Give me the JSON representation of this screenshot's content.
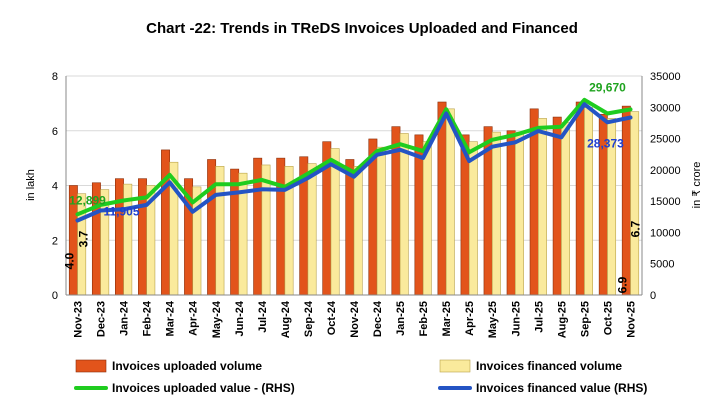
{
  "chart_data": {
    "type": "bar",
    "title": "Chart -22: Trends in TReDS Invoices Uploaded and Financed",
    "ylabel": "in lakh",
    "y2label": "in ₹ crore",
    "ylim": [
      0,
      8
    ],
    "yticks": [
      "0",
      "2",
      "4",
      "6",
      "8"
    ],
    "y2lim": [
      0,
      35000
    ],
    "y2ticks": [
      "0",
      "5000",
      "10000",
      "15000",
      "20000",
      "25000",
      "30000",
      "35000"
    ],
    "grid": true,
    "legend_position": "bottom",
    "categories": [
      "Nov-23",
      "Dec-23",
      "Jan-24",
      "Feb-24",
      "Mar-24",
      "Apr-24",
      "May-24",
      "Jun-24",
      "Jul-24",
      "Aug-24",
      "Sep-24",
      "Oct-24",
      "Nov-24",
      "Dec-24",
      "Jan-25",
      "Feb-25",
      "Mar-25",
      "Apr-25",
      "May-25",
      "Jun-25",
      "Jul-25",
      "Aug-25",
      "Sep-25",
      "Oct-25",
      "Nov-25"
    ],
    "series": [
      {
        "name": "Invoices uploaded volume",
        "kind": "bar",
        "axis": "left",
        "color": "#E2541B",
        "values": [
          4.0,
          4.1,
          4.25,
          4.25,
          5.3,
          4.25,
          4.95,
          4.6,
          5.0,
          5.0,
          5.05,
          5.6,
          4.95,
          5.7,
          6.15,
          5.85,
          7.05,
          5.85,
          6.15,
          6.0,
          6.8,
          6.5,
          7.05,
          6.6,
          6.9
        ]
      },
      {
        "name": "Invoices financed volume",
        "kind": "bar",
        "axis": "left",
        "color": "#FAEA9C",
        "values": [
          3.7,
          3.85,
          4.05,
          4.0,
          4.85,
          3.95,
          4.7,
          4.45,
          4.75,
          4.7,
          4.8,
          5.35,
          4.7,
          5.4,
          5.9,
          5.6,
          6.8,
          5.6,
          5.95,
          5.95,
          6.45,
          6.3,
          6.85,
          6.45,
          6.7
        ]
      },
      {
        "name": "Invoices uploaded value - (RHS)",
        "kind": "line",
        "axis": "right",
        "color": "#1FCC1F",
        "values": [
          12899,
          14400,
          15100,
          15600,
          19200,
          14800,
          17700,
          17700,
          18400,
          17300,
          19400,
          21600,
          19600,
          23000,
          24100,
          23000,
          29700,
          22800,
          24800,
          25600,
          26700,
          26900,
          31200,
          29000,
          29670
        ]
      },
      {
        "name": "Invoices financed value (RHS)",
        "kind": "line",
        "axis": "right",
        "color": "#2454C4",
        "values": [
          11905,
          13500,
          13700,
          14400,
          18000,
          13300,
          16000,
          16400,
          16900,
          16800,
          18700,
          20900,
          18900,
          22400,
          23200,
          21900,
          29000,
          21400,
          23700,
          24400,
          26200,
          25200,
          30500,
          27600,
          28373
        ]
      }
    ],
    "data_labels": {
      "uploaded_value_first": "12,899",
      "uploaded_value_last": "29,670",
      "financed_value_first": "11,905",
      "financed_value_last": "28,373",
      "uploaded_volume_first": "4.0",
      "financed_volume_first": "3.7",
      "uploaded_volume_last": "6.9",
      "financed_volume_last": "6.7"
    },
    "colors": {
      "uploaded_value_label": "#1FA31F",
      "financed_value_label": "#1F3FD0",
      "grid": "#D9D9D9",
      "axis": "#888888"
    }
  }
}
